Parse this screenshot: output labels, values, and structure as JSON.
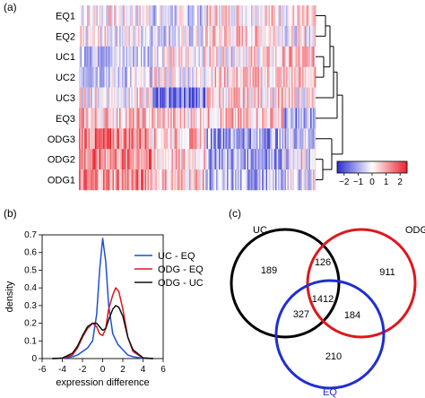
{
  "panels": {
    "a": "(a)",
    "b": "(b)",
    "c": "(c)"
  },
  "chart_data": [
    {
      "type": "heatmap",
      "rows": [
        "EQ1",
        "EQ2",
        "UC1",
        "UC2",
        "UC3",
        "EQ3",
        "ODG3",
        "ODG2",
        "ODG1"
      ],
      "column_blocks": [
        {
          "name": "block1",
          "pattern": {
            "EQ1": 0.1,
            "EQ2": 0.0,
            "UC1": -0.5,
            "UC2": -0.4,
            "UC3": 0.1,
            "EQ3": 0.6,
            "ODG3": 1.4,
            "ODG2": 1.3,
            "ODG1": 1.2
          }
        },
        {
          "name": "block2",
          "pattern": {
            "EQ1": -0.4,
            "EQ2": -0.3,
            "UC1": 0.1,
            "UC2": 0.0,
            "UC3": -1.5,
            "EQ3": 0.5,
            "ODG3": 0.6,
            "ODG2": 0.5,
            "ODG1": 0.6
          }
        },
        {
          "name": "block3",
          "pattern": {
            "EQ1": 0.4,
            "EQ2": 0.5,
            "UC1": 0.3,
            "UC2": 0.5,
            "UC3": 0.4,
            "EQ3": 0.6,
            "ODG3": -1.0,
            "ODG2": -0.9,
            "ODG1": -0.9
          }
        },
        {
          "name": "block4",
          "pattern": {
            "EQ1": 0.2,
            "EQ2": -0.1,
            "UC1": 0.6,
            "UC2": 0.5,
            "UC3": 0.2,
            "EQ3": -1.1,
            "ODG3": -0.5,
            "ODG2": -0.4,
            "ODG1": -0.3
          }
        }
      ],
      "colorbar": {
        "min": -2.5,
        "max": 2.5,
        "ticks": [
          -2,
          -1,
          0,
          1,
          2
        ],
        "tick_labels": [
          "−2",
          "−1",
          "0",
          "1",
          "2"
        ],
        "low_color": "#2b2bd0",
        "mid_color": "#ffffff",
        "high_color": "#e8202a"
      },
      "dendrogram": "right"
    },
    {
      "type": "line",
      "xlabel": "expression difference",
      "ylabel": "density",
      "xlim": [
        -6,
        6
      ],
      "ylim": [
        0,
        0.7
      ],
      "xticks": [
        -6,
        -4,
        -2,
        0,
        2,
        4,
        6
      ],
      "yticks": [
        0,
        0.1,
        0.2,
        0.3,
        0.4,
        0.5,
        0.6,
        0.7
      ],
      "legend_position": "top-right",
      "series": [
        {
          "name": "UC - EQ",
          "color": "#1f4fd8",
          "x": [
            -5,
            -4,
            -3,
            -2.5,
            -2,
            -1.5,
            -1,
            -0.6,
            -0.3,
            0,
            0.3,
            0.6,
            1,
            1.5,
            2,
            2.5,
            3,
            4,
            5
          ],
          "y": [
            0,
            0.001,
            0.01,
            0.02,
            0.04,
            0.06,
            0.1,
            0.25,
            0.5,
            0.68,
            0.55,
            0.3,
            0.14,
            0.08,
            0.05,
            0.02,
            0.01,
            0.001,
            0
          ]
        },
        {
          "name": "ODG - EQ",
          "color": "#e0161e",
          "x": [
            -5,
            -4,
            -3,
            -2.5,
            -2,
            -1.5,
            -1,
            -0.6,
            -0.3,
            0,
            0.3,
            0.6,
            1,
            1.3,
            1.6,
            2,
            2.5,
            3,
            4,
            5
          ],
          "y": [
            0,
            0.002,
            0.02,
            0.06,
            0.12,
            0.17,
            0.2,
            0.18,
            0.14,
            0.13,
            0.17,
            0.28,
            0.36,
            0.4,
            0.38,
            0.28,
            0.12,
            0.04,
            0.003,
            0
          ]
        },
        {
          "name": "ODG - UC",
          "color": "#111111",
          "x": [
            -5,
            -4,
            -3,
            -2.5,
            -2,
            -1.5,
            -1,
            -0.6,
            -0.3,
            0,
            0.3,
            0.6,
            1,
            1.3,
            1.6,
            2,
            2.5,
            3,
            4,
            5
          ],
          "y": [
            0,
            0.003,
            0.03,
            0.07,
            0.13,
            0.18,
            0.2,
            0.2,
            0.18,
            0.16,
            0.17,
            0.22,
            0.28,
            0.3,
            0.29,
            0.24,
            0.12,
            0.05,
            0.004,
            0
          ]
        }
      ]
    },
    {
      "type": "venn",
      "sets": [
        {
          "name": "UC",
          "color": "#000000"
        },
        {
          "name": "ODG",
          "color": "#e0161e"
        },
        {
          "name": "EQ",
          "color": "#1f2fd0"
        }
      ],
      "regions": {
        "UC_only": 189,
        "ODG_only": 911,
        "EQ_only": 210,
        "UC_ODG": 126,
        "UC_EQ": 327,
        "ODG_EQ": 184,
        "UC_ODG_EQ": 1412
      }
    }
  ]
}
